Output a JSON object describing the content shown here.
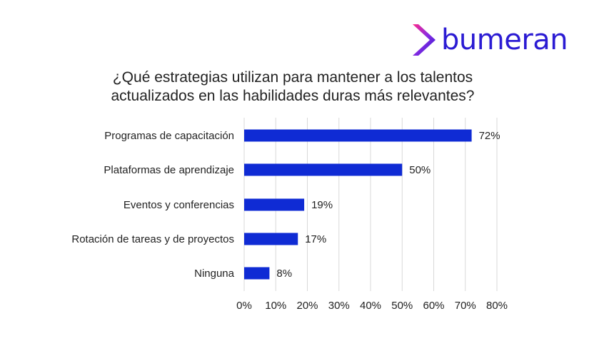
{
  "logo": {
    "text": "bumeran"
  },
  "title_lines": [
    "¿Qué estrategias utilizan para mantener a los talentos",
    "actualizados en las habilidades duras más relevantes?"
  ],
  "colors": {
    "bar": "#0f2bd4",
    "grid": "#d9d9d9",
    "brand": "#2b1bd3"
  },
  "chart_data": {
    "type": "bar",
    "orientation": "horizontal",
    "title": "¿Qué estrategias utilizan para mantener a los talentos actualizados en las habilidades duras más relevantes?",
    "categories": [
      "Programas de capacitación",
      "Plataformas de aprendizaje",
      "Eventos y conferencias",
      "Rotación de tareas y de proyectos",
      "Ninguna"
    ],
    "values": [
      72,
      50,
      19,
      17,
      8
    ],
    "value_labels": [
      "72%",
      "50%",
      "19%",
      "17%",
      "8%"
    ],
    "xlim": [
      0,
      80
    ],
    "x_ticks": [
      0,
      10,
      20,
      30,
      40,
      50,
      60,
      70,
      80
    ],
    "x_tick_labels": [
      "0%",
      "10%",
      "20%",
      "30%",
      "40%",
      "50%",
      "60%",
      "70%",
      "80%"
    ],
    "xlabel": "",
    "ylabel": "",
    "grid": "vertical",
    "legend": "none"
  }
}
